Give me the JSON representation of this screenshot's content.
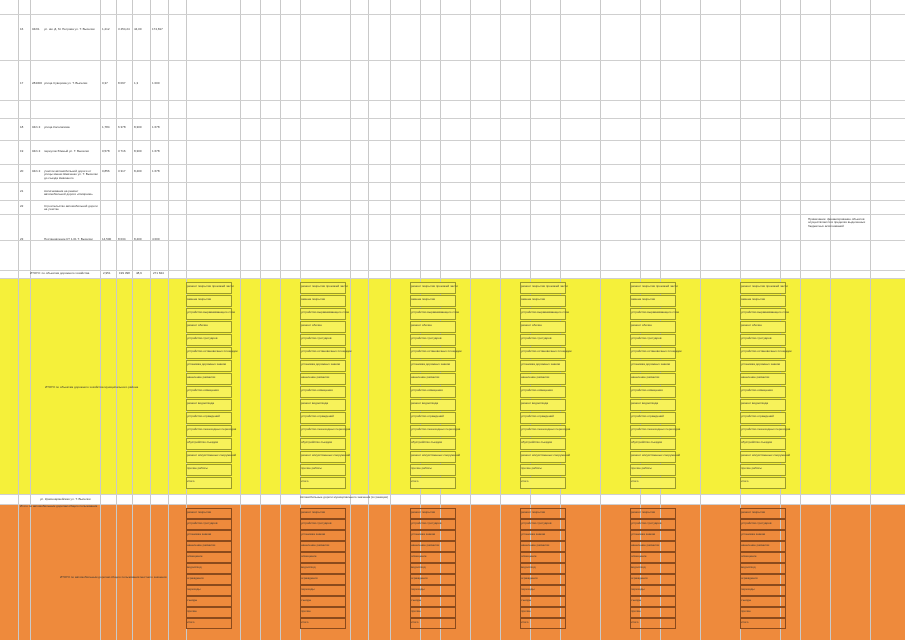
{
  "rows": [
    {
      "num": "16",
      "code": "04/01",
      "name": "ул. им. Д. М. Петрова ул. Т. Выселки",
      "v1": "1,212",
      "v2": "3 454,24",
      "v3": "44,00",
      "v4": "174,817"
    },
    {
      "num": "17",
      "code": "284300",
      "name": "улица Суворова ул. Т. Выселки",
      "v1": "0,37",
      "v2": "8 097",
      "v3": "1,3",
      "v4": "1 000"
    },
    {
      "num": "18",
      "code": "04/1.3",
      "name": "улица Косолапова",
      "v1": "1,784",
      "v2": "6 378",
      "v3": "8,300",
      "v4": "1 678"
    },
    {
      "num": "19",
      "code": "04/1.3",
      "name": "переулок Южный ул. Т. Выселки",
      "v1": "0,578",
      "v2": "3 716",
      "v3": "8,300",
      "v4": "1 678"
    },
    {
      "num": "20",
      "code": "04/1.3",
      "name": "участок автомобильной дороги от улицы имени Шевченко ул. Т. Выселки до съезда Невинного",
      "v1": "0,856",
      "v2": "3 317",
      "v3": "8,400",
      "v4": "1 678"
    },
    {
      "num": "21",
      "code": "",
      "name": "Ассигнования на ремонт автомобильной дороги «Смирнов»",
      "v1": "",
      "v2": "",
      "v3": "",
      "v4": ""
    },
    {
      "num": "22",
      "code": "",
      "name": "Строительство автомобильной дороги на участке",
      "v1": "",
      "v2": "",
      "v3": "",
      "v4": ""
    },
    {
      "num": "23",
      "code": "",
      "name": "Постановление КТ 1.01 Т. Выселки",
      "v1": "14,500",
      "v2": "8 034",
      "v3": "8,400",
      "v4": "4 000"
    }
  ],
  "total_row": {
    "label": "ИТОГО: по объектам дорожного хозяйства",
    "v1": "2,951",
    "v2": "199 398",
    "v3": "48,9",
    "v4": "271 844"
  },
  "yellow_section_label": "ИТОГО по объектам дорожного хозяйства муниципального района",
  "orange_section_label": "ИТОГО по автомобильным дорогам общего пользования местного значения",
  "mid_row_text": "Автомобильные дороги муниципального значения (в границах)",
  "mid_row_left": "ул. Красноармейская ул. Т. Выселки",
  "mid_row_note": "Итого по автомобильным дорогам общего пользования",
  "column_headers": [
    "ремонт покрытия проезжей части",
    "ремонт покрытия проезжей части",
    "ремонт покрытия проезжей части",
    "ремонт покрытия проезжей части",
    "ремонт покрытия проезжей части",
    "ремонт покрытия проезжей части"
  ],
  "yellow_items": [
    "ремонт покрытия проезжей части",
    "замена покрытия",
    "устройство выравнивающего слоя",
    "ремонт обочин",
    "устройство тротуаров",
    "устройство остановочных площадок",
    "установка дорожных знаков",
    "нанесение разметки",
    "устройство освещения",
    "ремонт водоотвода",
    "устройство ограждений",
    "устройство пешеходных переходов",
    "обустройство съездов",
    "ремонт искусственных сооружений",
    "прочие работы",
    "итого"
  ],
  "orange_items": [
    "ремонт покрытия",
    "устройство тротуаров",
    "установка знаков",
    "нанесение разметки",
    "освещение",
    "водоотвод",
    "ограждения",
    "переходы",
    "съезды",
    "прочие",
    "итого"
  ],
  "note_right": "Примечание: финансирование объектов осуществляется в пределах выделенных бюджетных ассигнований",
  "colors": {
    "yellow": "#f5f03a",
    "orange": "#ee8a3c",
    "grid": "#c9c9c9"
  }
}
